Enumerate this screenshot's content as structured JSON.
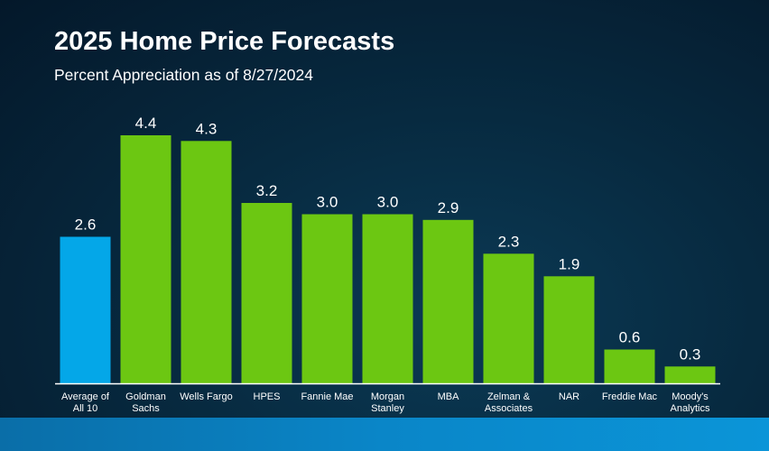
{
  "title": "2025 Home Price Forecasts",
  "subtitle": "Percent Appreciation as of 8/27/2024",
  "colors": {
    "average_bar": "#04a7e8",
    "forecaster_bar": "#6cc712",
    "axis_line": "#ffffff",
    "text": "#ffffff"
  },
  "chart_data": {
    "type": "bar",
    "title": "2025 Home Price Forecasts",
    "subtitle": "Percent Appreciation as of 8/27/2024",
    "categories": [
      [
        "Average of",
        "All 10"
      ],
      [
        "Goldman",
        "Sachs"
      ],
      [
        "Wells Fargo"
      ],
      [
        "HPES"
      ],
      [
        "Fannie Mae"
      ],
      [
        "Morgan",
        "Stanley"
      ],
      [
        "MBA"
      ],
      [
        "Zelman &",
        "Associates"
      ],
      [
        "NAR"
      ],
      [
        "Freddie Mac"
      ],
      [
        "Moody's",
        "Analytics"
      ]
    ],
    "values": [
      2.6,
      4.4,
      4.3,
      3.2,
      3.0,
      3.0,
      2.9,
      2.3,
      1.9,
      0.6,
      0.3
    ],
    "value_labels": [
      "2.6",
      "4.4",
      "4.3",
      "3.2",
      "3.0",
      "3.0",
      "2.9",
      "2.3",
      "1.9",
      "0.6",
      "0.3"
    ],
    "highlight_index": 0,
    "xlabel": "",
    "ylabel": "",
    "ylim": [
      0,
      4.5
    ],
    "grid": false,
    "legend": "none"
  }
}
